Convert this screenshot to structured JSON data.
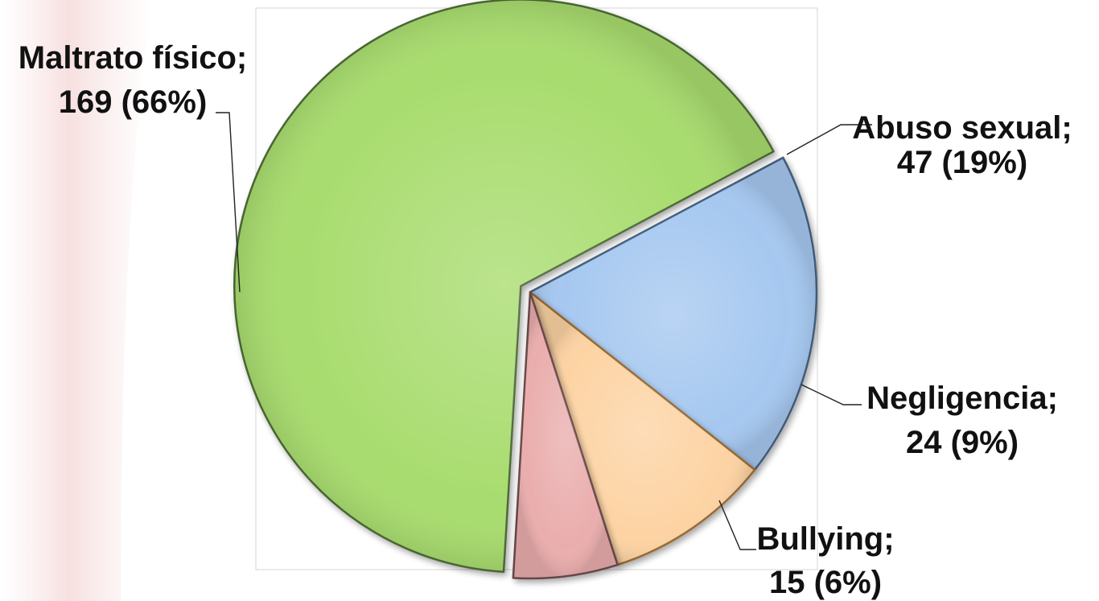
{
  "chart_data": {
    "type": "pie",
    "title": "",
    "slices": [
      {
        "category": "Abuso sexual",
        "value": 47,
        "percent_label": "19%",
        "label_line1": "Abuso sexual;",
        "label_line2": "47 (19%)",
        "color": "#a6c8f0",
        "edge": "#44607f",
        "exploded": false
      },
      {
        "category": "Negligencia",
        "value": 24,
        "percent_label": "9%",
        "label_line1": "Negligencia;",
        "label_line2": "24 (9%)",
        "color": "#fdd3a3",
        "edge": "#9a6a30",
        "exploded": false
      },
      {
        "category": "Bullying",
        "value": 15,
        "percent_label": "6%",
        "label_line1": "Bullying;",
        "label_line2": "15 (6%)",
        "color": "#eaadad",
        "edge": "#6a4a4a",
        "exploded": false
      },
      {
        "category": "Maltrato físico",
        "value": 169,
        "percent_label": "66%",
        "label_line1": "Maltrato físico;",
        "label_line2": "169 (66%)",
        "color": "#a8dc6e",
        "edge": "#4c6a34",
        "exploded": true
      }
    ],
    "legend": "none",
    "data_labels": "outside with leader lines"
  },
  "background": {
    "decor_color": "#f4dede",
    "frame_color": "#d6d6d6"
  }
}
